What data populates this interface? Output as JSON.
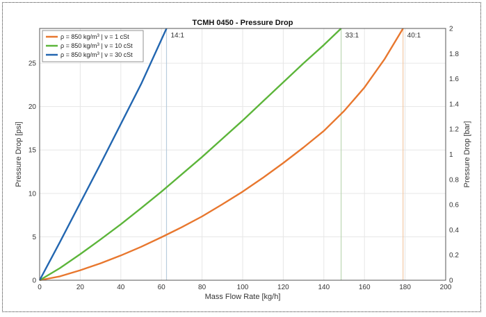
{
  "chart_data": {
    "type": "line",
    "title": "TCMH 0450 - Pressure Drop",
    "xlabel": "Mass Flow Rate [kg/h]",
    "ylabel": "Pressure Drop [psi]",
    "y2label": "Pressure Drop [bar]",
    "xlim": [
      0,
      200
    ],
    "ylim": [
      0,
      29
    ],
    "y2lim": [
      0,
      2
    ],
    "xticks": [
      0,
      20,
      40,
      60,
      80,
      100,
      120,
      140,
      160,
      180,
      200
    ],
    "yticks": [
      0,
      5,
      10,
      15,
      20,
      25
    ],
    "y2ticks": [
      0,
      0.2,
      0.4,
      0.6,
      0.8,
      1,
      1.2,
      1.4,
      1.6,
      1.8,
      2
    ],
    "grid": true,
    "legend_position": "top-left",
    "series": [
      {
        "name_parts": [
          "ρ = 850 kg/m",
          "3",
          " | ν = 1 cSt"
        ],
        "color": "#e8772e",
        "x": [
          0,
          10,
          20,
          30,
          40,
          50,
          60,
          70,
          80,
          90,
          100,
          110,
          120,
          130,
          140,
          150,
          160,
          170,
          179
        ],
        "y": [
          0,
          0.45,
          1.15,
          1.95,
          2.85,
          3.85,
          4.95,
          6.1,
          7.35,
          8.75,
          10.2,
          11.8,
          13.5,
          15.3,
          17.2,
          19.5,
          22.2,
          25.5,
          29
        ]
      },
      {
        "name_parts": [
          "ρ = 850 kg/m",
          "3",
          " | ν = 10 cSt"
        ],
        "color": "#5cb53a",
        "x": [
          0,
          10,
          20,
          30,
          40,
          50,
          60,
          70,
          80,
          90,
          100,
          110,
          120,
          130,
          140,
          148.5
        ],
        "y": [
          0,
          1.4,
          3.0,
          4.7,
          6.45,
          8.3,
          10.2,
          12.2,
          14.2,
          16.3,
          18.4,
          20.6,
          22.8,
          25.0,
          27.1,
          29
        ]
      },
      {
        "name_parts": [
          "ρ = 850 kg/m",
          "3",
          " | ν = 30 cSt"
        ],
        "color": "#2266b0",
        "x": [
          0,
          10,
          20,
          30,
          40,
          50,
          62.5
        ],
        "y": [
          0,
          4.4,
          8.9,
          13.4,
          18.0,
          22.6,
          29
        ]
      }
    ],
    "vlines": [
      {
        "x": 62.5,
        "label": "14:1",
        "color": "#b8ccdc"
      },
      {
        "x": 148.5,
        "label": "33:1",
        "color": "#bcd8b4"
      },
      {
        "x": 179,
        "label": "40:1",
        "color": "#f2c8a4"
      }
    ]
  }
}
